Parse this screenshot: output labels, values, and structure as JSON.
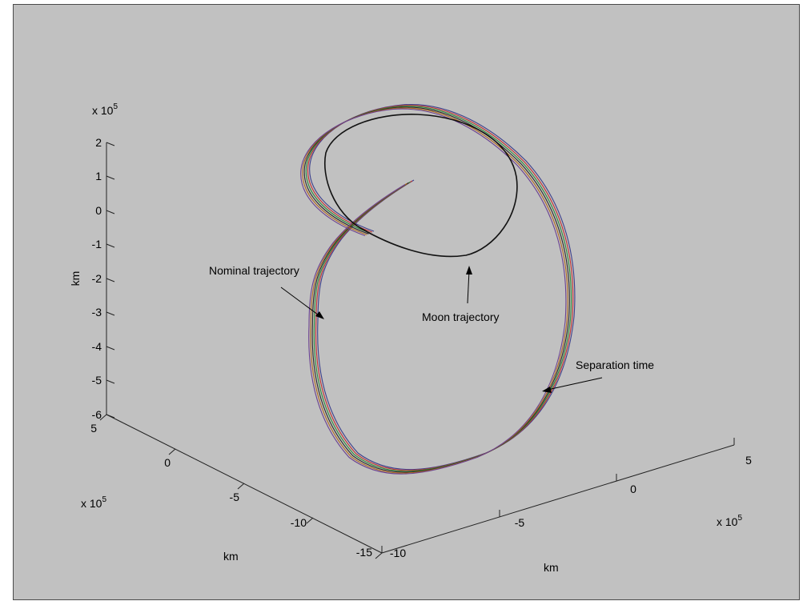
{
  "chart_data": {
    "type": "line",
    "projection": "3d",
    "axes": {
      "z": {
        "label": "km",
        "exponent_label": "x 10",
        "exponent": "5",
        "ticks": [
          "2",
          "1",
          "0",
          "-1",
          "-2",
          "-3",
          "-4",
          "-5",
          "-6"
        ],
        "range": [
          -6,
          2
        ]
      },
      "y": {
        "label": "km",
        "exponent_label": "x 10",
        "exponent": "5",
        "ticks": [
          "5",
          "0",
          "-5",
          "-10",
          "-15"
        ],
        "range": [
          -15,
          5
        ]
      },
      "x": {
        "label": "km",
        "exponent_label": "x 10",
        "exponent": "5",
        "ticks": [
          "-10",
          "-5",
          "0",
          "5"
        ],
        "range": [
          -10,
          5
        ]
      }
    },
    "annotations": [
      {
        "text": "Nominal trajectory"
      },
      {
        "text": "Moon trajectory"
      },
      {
        "text": "Separation time"
      }
    ],
    "series": [
      {
        "color": "#3c3f8c",
        "lines": 1
      },
      {
        "color": "#c03030",
        "lines": 1
      },
      {
        "color": "#2e8a3a",
        "lines": 1
      },
      {
        "color": "#2a2a2a",
        "lines": 1
      },
      {
        "color": "#b06a20",
        "lines": 1
      },
      {
        "color": "#6a4090",
        "lines": 1
      }
    ],
    "grid": false,
    "background": "#c1c1c1"
  }
}
